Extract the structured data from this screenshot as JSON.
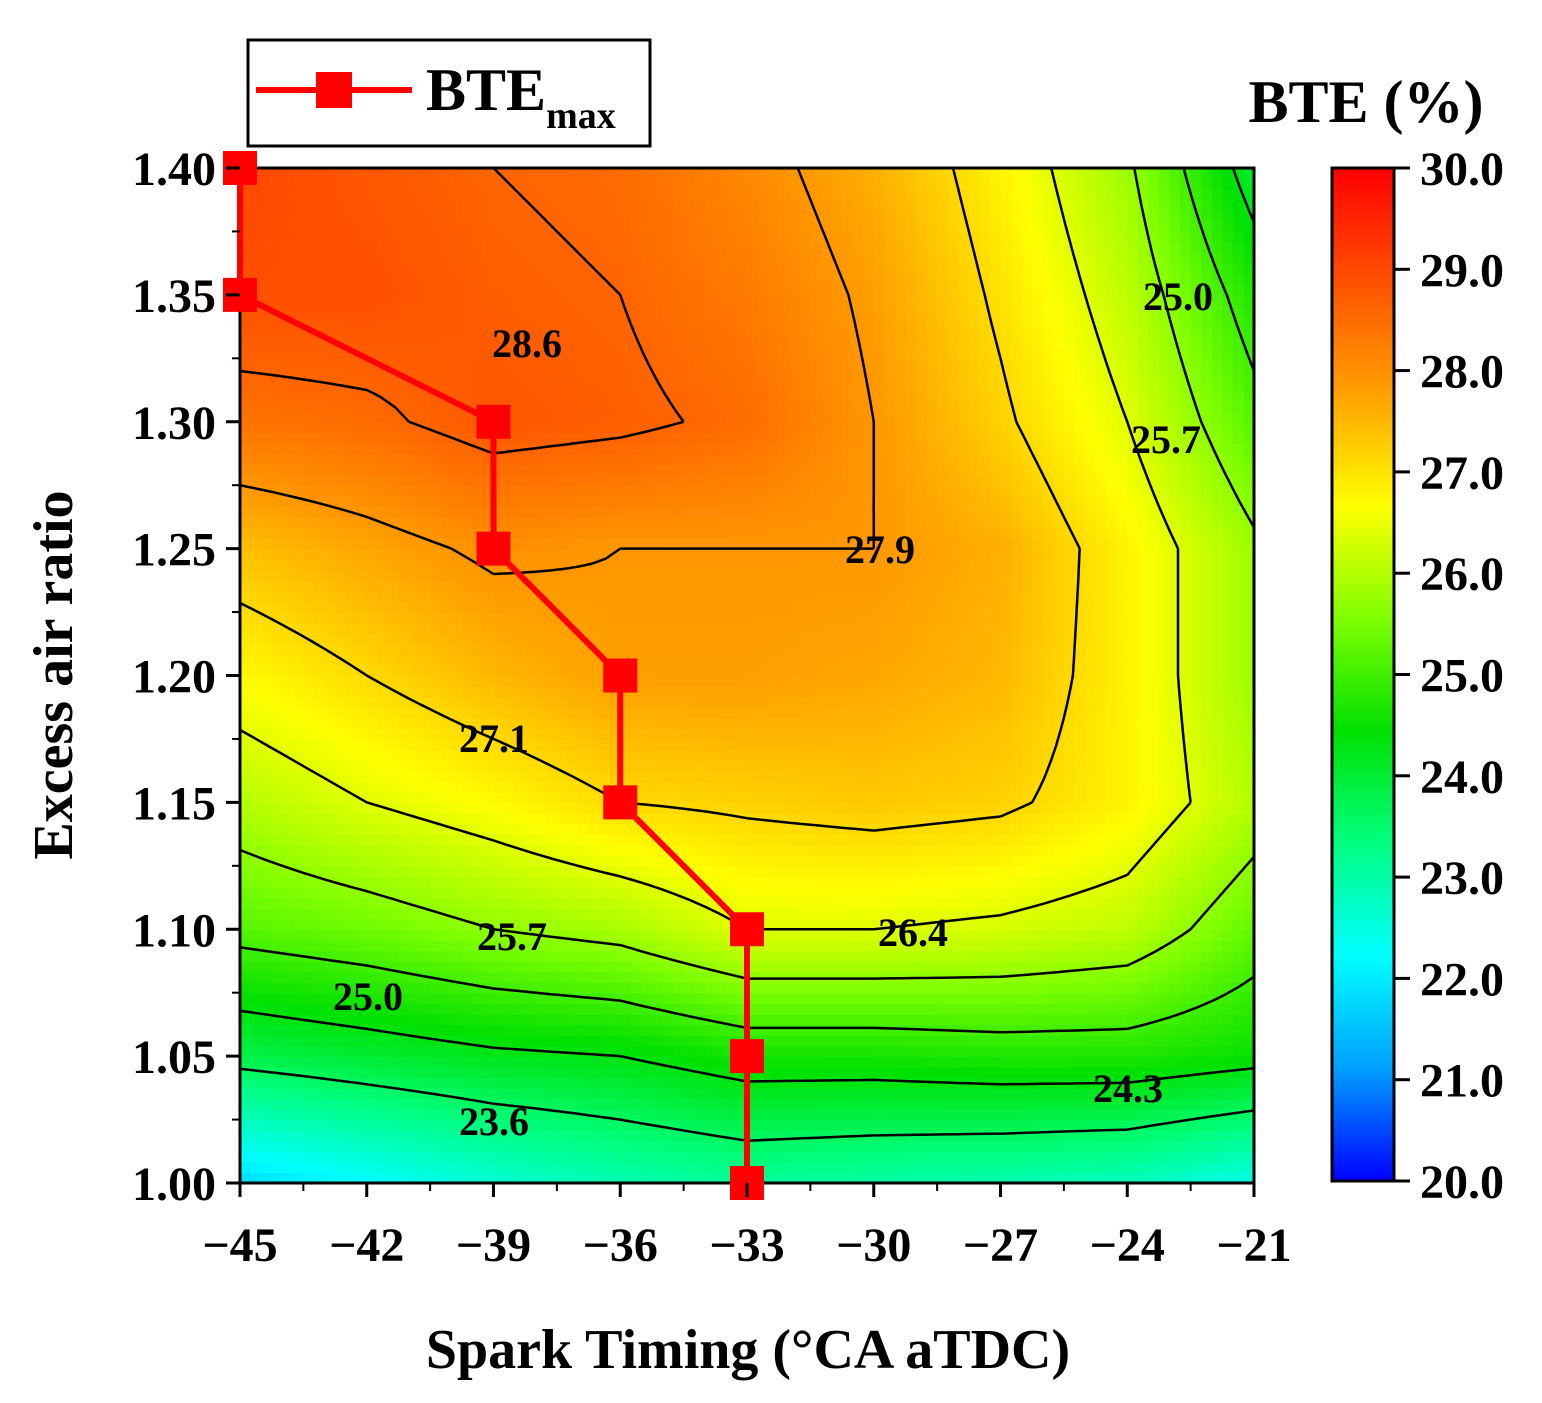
{
  "chart_data": {
    "type": "heatmap",
    "subtype": "filled-contour",
    "xlabel": "Spark Timing (°CA aTDC)",
    "ylabel": "Excess air ratio",
    "x_ticks": [
      -45,
      -42,
      -39,
      -36,
      -33,
      -30,
      -27,
      -24,
      -21
    ],
    "x_tick_labels": [
      "−45",
      "−42",
      "−39",
      "−36",
      "−33",
      "−30",
      "−27",
      "−24",
      "−21"
    ],
    "y_ticks": [
      1.0,
      1.05,
      1.1,
      1.15,
      1.2,
      1.25,
      1.3,
      1.35,
      1.4
    ],
    "y_tick_labels": [
      "1.00",
      "1.05",
      "1.10",
      "1.15",
      "1.20",
      "1.25",
      "1.30",
      "1.35",
      "1.40"
    ],
    "xlim": [
      -45,
      -21
    ],
    "ylim": [
      1.0,
      1.4
    ],
    "colorbar": {
      "title": "BTE (%)",
      "range": [
        20.0,
        30.0
      ],
      "ticks": [
        "30.0",
        "29.0",
        "28.0",
        "27.0",
        "26.0",
        "25.0",
        "24.0",
        "23.0",
        "22.0",
        "21.0",
        "20.0"
      ],
      "colors": [
        "#0000ff",
        "#00a0ff",
        "#00ffff",
        "#00ff80",
        "#00e000",
        "#80ff00",
        "#ffff00",
        "#ffa000",
        "#ff5000",
        "#ff0000"
      ]
    },
    "grid_x": [
      -45,
      -42,
      -39,
      -36,
      -33,
      -30,
      -27,
      -24,
      -21
    ],
    "grid_y": [
      1.0,
      1.05,
      1.1,
      1.15,
      1.2,
      1.25,
      1.3,
      1.35,
      1.4
    ],
    "grid_z": [
      [
        21.8,
        22.2,
        22.6,
        22.9,
        23.1,
        23.0,
        22.9,
        22.8,
        22.4
      ],
      [
        23.8,
        24.0,
        24.2,
        24.3,
        24.6,
        24.6,
        24.7,
        24.7,
        24.5
      ],
      [
        25.2,
        25.4,
        25.7,
        25.9,
        26.4,
        26.4,
        26.3,
        26.1,
        25.3
      ],
      [
        26.0,
        26.4,
        26.7,
        27.1,
        27.2,
        27.3,
        27.2,
        26.8,
        26.0
      ],
      [
        26.7,
        27.1,
        27.5,
        27.8,
        27.8,
        27.7,
        27.5,
        26.8,
        25.8
      ],
      [
        27.4,
        27.7,
        28.0,
        27.9,
        27.9,
        27.9,
        27.6,
        26.8,
        25.8
      ],
      [
        28.4,
        28.5,
        28.8,
        28.7,
        28.5,
        27.9,
        27.2,
        26.4,
        25.2
      ],
      [
        28.9,
        28.9,
        28.7,
        28.6,
        28.3,
        27.8,
        27.0,
        26.1,
        24.7
      ],
      [
        29.0,
        28.8,
        28.6,
        28.5,
        28.1,
        27.6,
        26.8,
        25.8,
        24.0
      ]
    ],
    "contour_levels": [
      23.6,
      24.3,
      25.0,
      25.7,
      26.4,
      27.1,
      27.9,
      28.6
    ],
    "contour_labels": [
      "28.6",
      "27.9",
      "27.1",
      "26.4",
      "25.7",
      "25.0",
      "24.3",
      "23.6",
      "25.0",
      "25.7"
    ],
    "series": [
      {
        "name": "BTEmax",
        "x": [
          -45,
          -45,
          -39,
          -39,
          -36,
          -36,
          -33,
          -33,
          -33
        ],
        "y": [
          1.4,
          1.35,
          1.3,
          1.25,
          1.2,
          1.15,
          1.1,
          1.05,
          1.0
        ],
        "color": "#ff0000"
      }
    ],
    "legend": {
      "label_main": "BTE",
      "label_sub": "max",
      "position": "top-left"
    }
  }
}
